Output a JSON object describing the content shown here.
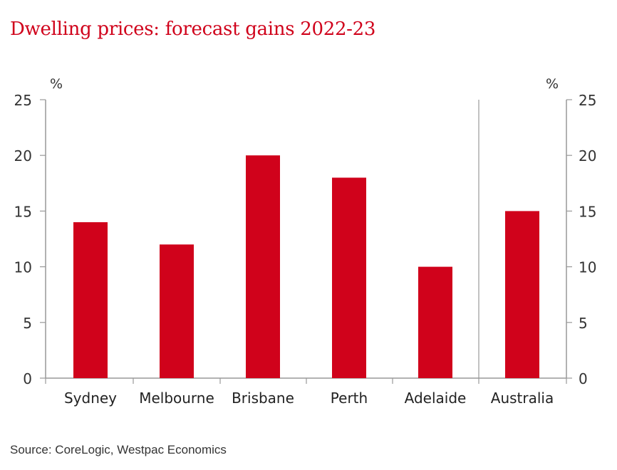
{
  "title": "Dwelling prices: forecast gains 2022-23",
  "source": "Source: CoreLogic, Westpac Economics",
  "colors": {
    "bar": "#d0021b",
    "axis": "#999999",
    "title": "#d0021b"
  },
  "chart_data": {
    "type": "bar",
    "title": "Dwelling prices: forecast gains 2022-23",
    "categories": [
      "Sydney",
      "Melbourne",
      "Brisbane",
      "Perth",
      "Adelaide",
      "Australia"
    ],
    "values": [
      14,
      12,
      20,
      18,
      10,
      15
    ],
    "ylabel_left": "%",
    "ylabel_right": "%",
    "ylim": [
      0,
      25
    ],
    "yticks": [
      0,
      5,
      10,
      15,
      20,
      25
    ],
    "grid": false,
    "separator_before": "Australia"
  }
}
